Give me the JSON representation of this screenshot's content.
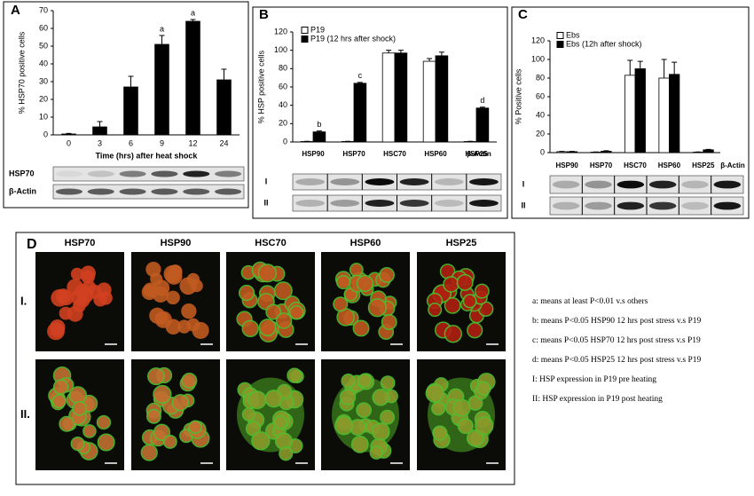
{
  "chart_data": [
    {
      "type": "bar",
      "panel": "A",
      "ylabel": "% HSP70 positive cells",
      "xlabel": "Time (hrs) after heat shock",
      "categories": [
        "0",
        "3",
        "6",
        "9",
        "12",
        "24"
      ],
      "values": [
        0.5,
        4.5,
        27,
        51,
        64,
        31
      ],
      "errors": [
        0.3,
        3,
        6,
        5,
        1,
        6
      ],
      "letters": [
        null,
        null,
        null,
        "a",
        "a",
        null
      ],
      "color": "#000000",
      "ylim": [
        0,
        70
      ],
      "yticks": [
        0,
        10,
        20,
        30,
        40,
        50,
        60,
        70
      ],
      "blot_labels": [
        "HSP70",
        "β-Actin"
      ]
    },
    {
      "type": "bar",
      "panel": "B",
      "ylabel": "% HSP positive cells",
      "categories": [
        "HSP90",
        "HSP70",
        "HSC70",
        "HSP60",
        "HSP25"
      ],
      "extra_label": "β-Actin",
      "series": [
        {
          "name": "P19",
          "color": "#ffffff",
          "values": [
            0.5,
            0.5,
            97,
            88,
            0.5
          ],
          "errors": [
            0.2,
            0.2,
            3,
            3,
            0.2
          ],
          "letters": [
            null,
            null,
            null,
            null,
            null
          ]
        },
        {
          "name": "P19 (12 hrs after shock)",
          "color": "#000000",
          "values": [
            11,
            64,
            97,
            94,
            37
          ],
          "errors": [
            1,
            1,
            3,
            4,
            1
          ],
          "letters": [
            "b",
            "c",
            null,
            null,
            "d"
          ]
        }
      ],
      "ylim": [
        0,
        120
      ],
      "yticks": [
        0,
        20,
        40,
        60,
        80,
        100,
        120
      ],
      "blot_labels": [
        "I",
        "II"
      ]
    },
    {
      "type": "bar",
      "panel": "C",
      "ylabel": "% Positive cells",
      "categories": [
        "HSP90",
        "HSP70",
        "HSC70",
        "HSP60",
        "HSP25"
      ],
      "extra_label": "β-Actin",
      "series": [
        {
          "name": "Ebs",
          "color": "#ffffff",
          "values": [
            1,
            0.5,
            83,
            80,
            0.5
          ],
          "errors": [
            0.3,
            0.2,
            16,
            20,
            0.2
          ],
          "letters": [
            null,
            null,
            null,
            null,
            null
          ]
        },
        {
          "name": "Ebs (12h after shock)",
          "color": "#000000",
          "values": [
            1,
            1.5,
            90,
            84,
            3
          ],
          "errors": [
            0.3,
            0.5,
            8,
            13,
            0.5
          ],
          "letters": [
            null,
            null,
            null,
            null,
            null
          ]
        }
      ],
      "ylim": [
        0,
        120
      ],
      "yticks": [
        0,
        20,
        40,
        60,
        80,
        100,
        120
      ],
      "blot_labels": [
        "I",
        "II"
      ]
    }
  ],
  "panel_d": {
    "label": "D",
    "columns": [
      "HSP70",
      "HSP90",
      "HSC70",
      "HSP60",
      "HSP25"
    ],
    "rows": [
      "I.",
      "II."
    ]
  },
  "notes": [
    "a: means at least P<0.01 v.s others",
    "b: means P<0.05  HSP90 12 hrs post stress v.s P19",
    "c: means P<0.05  HSP70 12 hrs post stress v.s P19",
    "d: means P<0.05  HSP25 12 hrs post stress v.s P19",
    "I: HSP expression in P19 pre heating",
    "II: HSP expression in P19 post heating"
  ]
}
